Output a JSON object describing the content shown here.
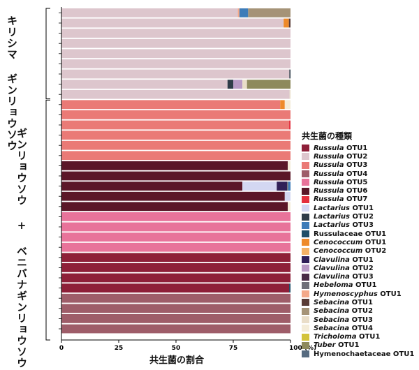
{
  "chart_data": {
    "type": "bar",
    "orientation": "horizontal",
    "stacked": true,
    "xlabel": "共生菌の割合",
    "xticks": [
      "0",
      "25",
      "50",
      "75",
      "100 (%)"
    ],
    "xlim": [
      0,
      100
    ],
    "groups": [
      {
        "label": "キリシマ\nギンリョウソウ",
        "rows": 9
      },
      {
        "label": "ギンリョウソウ + ベニバナギンリョウソウ",
        "rows": 23
      }
    ],
    "legend_title": "共生菌の種類",
    "taxa": [
      {
        "genus": "Russula",
        "otu": " OTU1",
        "color": "#8e1f38"
      },
      {
        "genus": "Russula",
        "otu": " OTU2",
        "color": "#ddc6cd"
      },
      {
        "genus": "Russula",
        "otu": " OTU3",
        "color": "#ea7a76"
      },
      {
        "genus": "Russula",
        "otu": " OTU4",
        "color": "#9e5d69"
      },
      {
        "genus": "Russula",
        "otu": " OTU5",
        "color": "#e8739a"
      },
      {
        "genus": "Russula",
        "otu": " OTU6",
        "color": "#5b1728"
      },
      {
        "genus": "Russula",
        "otu": " OTU7",
        "color": "#e4303e"
      },
      {
        "genus": "Lactarius",
        "otu": " OTU1",
        "color": "#d3d7f2"
      },
      {
        "genus": "Lactarius",
        "otu": " OTU2",
        "color": "#2f3c48"
      },
      {
        "genus": "Lactarius",
        "otu": " OTU3",
        "color": "#3d7cb8"
      },
      {
        "genus": "",
        "otu": "Russulaceae OTU1",
        "color": "#1f4e68"
      },
      {
        "genus": "Cenococcum",
        "otu": " OTU1",
        "color": "#ee8a2a"
      },
      {
        "genus": "Cenococcum",
        "otu": " OTU2",
        "color": "#f4b266"
      },
      {
        "genus": "Clavulina",
        "otu": " OTU1",
        "color": "#302058"
      },
      {
        "genus": "Clavulina",
        "otu": " OTU2",
        "color": "#b89ac4"
      },
      {
        "genus": "Clavulina",
        "otu": " OTU3",
        "color": "#4a2d46"
      },
      {
        "genus": "Hebeloma",
        "otu": " OTU1",
        "color": "#6e6f78"
      },
      {
        "genus": "Hymenoscyphus",
        "otu": " OTU1",
        "color": "#f4a98a"
      },
      {
        "genus": "Sebacina",
        "otu": " OTU1",
        "color": "#5a3c36"
      },
      {
        "genus": "Sebacina",
        "otu": " OTU2",
        "color": "#a59377"
      },
      {
        "genus": "Sebacina",
        "otu": " OTU3",
        "color": "#e9ddc8"
      },
      {
        "genus": "Sebacina",
        "otu": " OTU4",
        "color": "#f4ecd8"
      },
      {
        "genus": "Tricholoma",
        "otu": " OTU1",
        "color": "#d3c33a"
      },
      {
        "genus": "Tuber",
        "otu": " OTU1",
        "color": "#8e8a5c"
      },
      {
        "genus": "",
        "otu": "Hymenochaetaceae OTU1",
        "color": "#566b80"
      }
    ],
    "rows": [
      [
        [
          1,
          77
        ],
        [
          17,
          0.7
        ],
        [
          9,
          3.8
        ],
        [
          19,
          18.5
        ]
      ],
      [
        [
          1,
          97
        ],
        [
          11,
          2.3
        ],
        [
          18,
          0.7
        ]
      ],
      [
        [
          1,
          100
        ]
      ],
      [
        [
          1,
          100
        ]
      ],
      [
        [
          1,
          100
        ]
      ],
      [
        [
          1,
          100
        ]
      ],
      [
        [
          1,
          99.5
        ],
        [
          8,
          0.5
        ]
      ],
      [
        [
          1,
          72.5
        ],
        [
          8,
          2.5
        ],
        [
          14,
          4
        ],
        [
          20,
          2
        ],
        [
          23,
          19
        ]
      ],
      [
        [
          1,
          99.6
        ],
        [
          20,
          0.4
        ]
      ],
      [
        [
          2,
          95.5
        ],
        [
          11,
          2
        ],
        [
          21,
          2.5
        ]
      ],
      [
        [
          2,
          100
        ]
      ],
      [
        [
          2,
          99.4
        ],
        [
          6,
          0.6
        ]
      ],
      [
        [
          2,
          100
        ]
      ],
      [
        [
          2,
          100
        ]
      ],
      [
        [
          2,
          100
        ]
      ],
      [
        [
          5,
          98.8
        ],
        [
          21,
          1.2
        ]
      ],
      [
        [
          5,
          100
        ]
      ],
      [
        [
          5,
          79
        ],
        [
          7,
          15
        ],
        [
          13,
          4.5
        ],
        [
          16,
          0.5
        ],
        [
          9,
          1
        ]
      ],
      [
        [
          5,
          97.5
        ],
        [
          7,
          2.5
        ]
      ],
      [
        [
          5,
          98.8
        ],
        [
          21,
          1.2
        ]
      ],
      [
        [
          4,
          100
        ]
      ],
      [
        [
          4,
          100
        ]
      ],
      [
        [
          4,
          100
        ]
      ],
      [
        [
          4,
          100
        ]
      ],
      [
        [
          0,
          100
        ]
      ],
      [
        [
          0,
          100
        ]
      ],
      [
        [
          0,
          100
        ]
      ],
      [
        [
          0,
          99.4
        ],
        [
          10,
          0.6
        ]
      ],
      [
        [
          3,
          100
        ]
      ],
      [
        [
          3,
          100
        ]
      ],
      [
        [
          3,
          100
        ]
      ],
      [
        [
          3,
          100
        ]
      ]
    ]
  }
}
